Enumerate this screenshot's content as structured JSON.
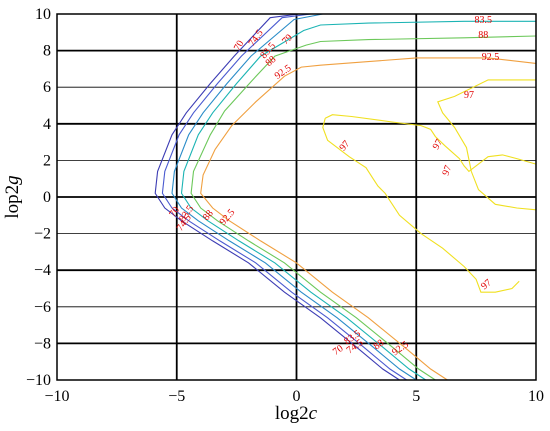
{
  "chart_data": {
    "type": "contour",
    "xlabel": {
      "main": "log2",
      "italic": "c"
    },
    "ylabel": {
      "main": "lop2",
      "italic": "g"
    },
    "xlim": [
      -10,
      10
    ],
    "ylim": [
      -10,
      10
    ],
    "xticks": [
      -10,
      -5,
      0,
      5,
      10
    ],
    "yticks": [
      -10,
      -8,
      -6,
      -4,
      -2,
      0,
      2,
      4,
      6,
      8,
      10
    ],
    "grid": true,
    "levels": [
      {
        "value": 70,
        "label": "70",
        "color": "#3c3cb4",
        "points": [
          [
            0.1,
            10
          ],
          [
            -1.1,
            9.8
          ],
          [
            -2.6,
            7.7
          ],
          [
            -3.6,
            6.2
          ],
          [
            -4.6,
            4.6
          ],
          [
            -5.2,
            3.4
          ],
          [
            -5.8,
            1.4
          ],
          [
            -5.9,
            0.2
          ],
          [
            -5.5,
            -0.6
          ],
          [
            -4.8,
            -1.3
          ],
          [
            -3.5,
            -2.4
          ],
          [
            -2,
            -3.6
          ],
          [
            -0.5,
            -5.2
          ],
          [
            1,
            -6.6
          ],
          [
            2.5,
            -8.2
          ],
          [
            3.6,
            -9.4
          ],
          [
            4.3,
            -10
          ]
        ]
      },
      {
        "value": 74.5,
        "label": "74.5",
        "color": "#4a5ad0",
        "points": [
          [
            0.6,
            10
          ],
          [
            -0.6,
            9.8
          ],
          [
            -2.3,
            7.7
          ],
          [
            -3.3,
            6.2
          ],
          [
            -4.3,
            4.6
          ],
          [
            -4.9,
            3.4
          ],
          [
            -5.5,
            1.4
          ],
          [
            -5.6,
            0.2
          ],
          [
            -5.2,
            -0.6
          ],
          [
            -4.5,
            -1.3
          ],
          [
            -3.2,
            -2.4
          ],
          [
            -1.7,
            -3.6
          ],
          [
            -0.2,
            -5.2
          ],
          [
            1.3,
            -6.6
          ],
          [
            2.8,
            -8.2
          ],
          [
            3.9,
            -9.4
          ],
          [
            4.6,
            -10
          ]
        ]
      },
      {
        "value": 79,
        "label": "79",
        "color": "#2a8cc8",
        "points": [
          [
            1.1,
            10
          ],
          [
            -0.1,
            9.7
          ],
          [
            -1.9,
            7.7
          ],
          [
            -2.9,
            6.2
          ],
          [
            -3.9,
            4.6
          ],
          [
            -4.5,
            3.4
          ],
          [
            -5.1,
            1.4
          ],
          [
            -5.2,
            0.2
          ],
          [
            -4.8,
            -0.6
          ],
          [
            -4.1,
            -1.3
          ],
          [
            -2.8,
            -2.4
          ],
          [
            -1.3,
            -3.6
          ],
          [
            0.2,
            -5.2
          ],
          [
            1.7,
            -6.6
          ],
          [
            3.2,
            -8.2
          ],
          [
            4.3,
            -9.4
          ],
          [
            5,
            -10
          ]
        ]
      },
      {
        "value": 83.5,
        "label": "83.5",
        "color": "#1cb4b4",
        "points": [
          [
            10,
            9.6
          ],
          [
            7,
            9.6
          ],
          [
            3,
            9.5
          ],
          [
            1,
            9.4
          ],
          [
            0.3,
            9.1
          ],
          [
            -1.5,
            7.7
          ],
          [
            -2.5,
            6.2
          ],
          [
            -3.5,
            4.6
          ],
          [
            -4.1,
            3.4
          ],
          [
            -4.7,
            1.4
          ],
          [
            -4.8,
            0.2
          ],
          [
            -4.4,
            -0.6
          ],
          [
            -3.7,
            -1.3
          ],
          [
            -2.4,
            -2.4
          ],
          [
            -0.9,
            -3.6
          ],
          [
            0.6,
            -5.2
          ],
          [
            2.1,
            -6.6
          ],
          [
            3.6,
            -8.2
          ],
          [
            4.7,
            -9.4
          ],
          [
            5.4,
            -10
          ]
        ]
      },
      {
        "value": 88,
        "label": "88",
        "color": "#6cc85a",
        "points": [
          [
            10,
            8.8
          ],
          [
            7,
            8.7
          ],
          [
            3,
            8.6
          ],
          [
            1,
            8.5
          ],
          [
            0.4,
            8.3
          ],
          [
            -0.9,
            7.7
          ],
          [
            -1.9,
            6.3
          ],
          [
            -3.0,
            4.7
          ],
          [
            -3.6,
            3.4
          ],
          [
            -4.3,
            1.4
          ],
          [
            -4.4,
            0.2
          ],
          [
            -4,
            -0.6
          ],
          [
            -3.3,
            -1.3
          ],
          [
            -2,
            -2.4
          ],
          [
            -0.5,
            -3.6
          ],
          [
            1,
            -5.2
          ],
          [
            2.5,
            -6.6
          ],
          [
            4,
            -8.2
          ],
          [
            5.1,
            -9.4
          ],
          [
            5.8,
            -10
          ]
        ]
      },
      {
        "value": 92.5,
        "label": "92.5",
        "color": "#f0a040",
        "points": [
          [
            10,
            7.3
          ],
          [
            8,
            7.6
          ],
          [
            5,
            7.6
          ],
          [
            3,
            7.4
          ],
          [
            1,
            7.2
          ],
          [
            0.2,
            7.1
          ],
          [
            -0.5,
            6.6
          ],
          [
            -1.7,
            5.2
          ],
          [
            -2.7,
            3.9
          ],
          [
            -3.4,
            2.6
          ],
          [
            -3.9,
            1.2
          ],
          [
            -4,
            0.2
          ],
          [
            -3.5,
            -0.6
          ],
          [
            -2.8,
            -1.3
          ],
          [
            -1.5,
            -2.4
          ],
          [
            0,
            -3.6
          ],
          [
            1.5,
            -5.2
          ],
          [
            3,
            -6.6
          ],
          [
            4.5,
            -8.2
          ],
          [
            5.6,
            -9.4
          ],
          [
            6.3,
            -10
          ]
        ]
      },
      {
        "value": 97,
        "label": "97",
        "color": "#f0e020",
        "points": [
          [
            1.2,
            4.3
          ],
          [
            1.5,
            4.5
          ],
          [
            2.3,
            4.4
          ],
          [
            4,
            4.1
          ],
          [
            5.2,
            3.9
          ],
          [
            5.6,
            3.7
          ],
          [
            5.8,
            3.3
          ],
          [
            6.2,
            2.8
          ],
          [
            6.8,
            2.1
          ],
          [
            7,
            1.7
          ],
          [
            7.2,
            1.4
          ],
          [
            8,
            2.2
          ],
          [
            8.6,
            2.3
          ],
          [
            9.2,
            2.1
          ],
          [
            10,
            1.8
          ]
        ]
      },
      {
        "value": 97,
        "label": "97",
        "color": "#f0e020",
        "points": [
          [
            10,
            6.4
          ],
          [
            8,
            6.4
          ],
          [
            6.6,
            5.5
          ],
          [
            5.9,
            5.2
          ],
          [
            6.1,
            4.6
          ],
          [
            6.6,
            3.8
          ],
          [
            7.1,
            2.7
          ],
          [
            7.3,
            1.4
          ],
          [
            7.6,
            0.4
          ],
          [
            8.3,
            -0.4
          ],
          [
            9.2,
            -0.6
          ],
          [
            10,
            -0.7
          ]
        ]
      },
      {
        "value": 97,
        "label": "97",
        "color": "#f0e020",
        "points": [
          [
            1.2,
            4.3
          ],
          [
            1.1,
            3.8
          ],
          [
            1.3,
            3.1
          ],
          [
            2.2,
            2.2
          ],
          [
            2.9,
            1.6
          ],
          [
            3.2,
            1.0
          ],
          [
            3.4,
            0.6
          ],
          [
            3.7,
            0.2
          ],
          [
            4.3,
            -1.0
          ],
          [
            5.2,
            -2.0
          ],
          [
            6.1,
            -2.8
          ],
          [
            7.0,
            -3.8
          ],
          [
            7.5,
            -4.5
          ],
          [
            7.7,
            -5.2
          ],
          [
            8.3,
            -5.2
          ],
          [
            9,
            -5.0
          ],
          [
            9.3,
            -4.6
          ]
        ]
      }
    ],
    "inline_labels": [
      {
        "text": "70",
        "x": -2.3,
        "y": 8.2,
        "rot": -60
      },
      {
        "text": "74.5",
        "x": -1.6,
        "y": 8.6,
        "rot": -55
      },
      {
        "text": "83.5",
        "x": -1.1,
        "y": 7.9,
        "rot": -50
      },
      {
        "text": "79",
        "x": -0.3,
        "y": 8.5,
        "rot": -45
      },
      {
        "text": "88",
        "x": -1.0,
        "y": 7.3,
        "rot": -40
      },
      {
        "text": "92.5",
        "x": -0.5,
        "y": 6.7,
        "rot": -35
      },
      {
        "text": "83.5",
        "x": 7.8,
        "y": 9.5,
        "rot": 0
      },
      {
        "text": "88",
        "x": 7.8,
        "y": 8.7,
        "rot": 0
      },
      {
        "text": "92.5",
        "x": 8.1,
        "y": 7.5,
        "rot": 0
      },
      {
        "text": "97",
        "x": 7.2,
        "y": 5.4,
        "rot": 0
      },
      {
        "text": "97",
        "x": 2.1,
        "y": 2.7,
        "rot": -50
      },
      {
        "text": "97",
        "x": 6.0,
        "y": 2.8,
        "rot": -60
      },
      {
        "text": "97",
        "x": 6.4,
        "y": 1.4,
        "rot": -70
      },
      {
        "text": "97",
        "x": 8.0,
        "y": -4.9,
        "rot": -40
      },
      {
        "text": "70",
        "x": -5.0,
        "y": -0.9,
        "rot": -55
      },
      {
        "text": "83.5",
        "x": -4.5,
        "y": -1.0,
        "rot": -55
      },
      {
        "text": "74.5",
        "x": -4.6,
        "y": -1.5,
        "rot": -55
      },
      {
        "text": "88",
        "x": -3.6,
        "y": -1.1,
        "rot": -50
      },
      {
        "text": "92.5",
        "x": -2.8,
        "y": -1.2,
        "rot": -50
      },
      {
        "text": "70",
        "x": 1.8,
        "y": -8.5,
        "rot": -35
      },
      {
        "text": "74.5",
        "x": 2.5,
        "y": -8.3,
        "rot": -35
      },
      {
        "text": "83.5",
        "x": 2.4,
        "y": -7.8,
        "rot": -35
      },
      {
        "text": "88",
        "x": 3.5,
        "y": -8.2,
        "rot": -35
      },
      {
        "text": "92.5",
        "x": 4.4,
        "y": -8.4,
        "rot": -35
      }
    ]
  }
}
